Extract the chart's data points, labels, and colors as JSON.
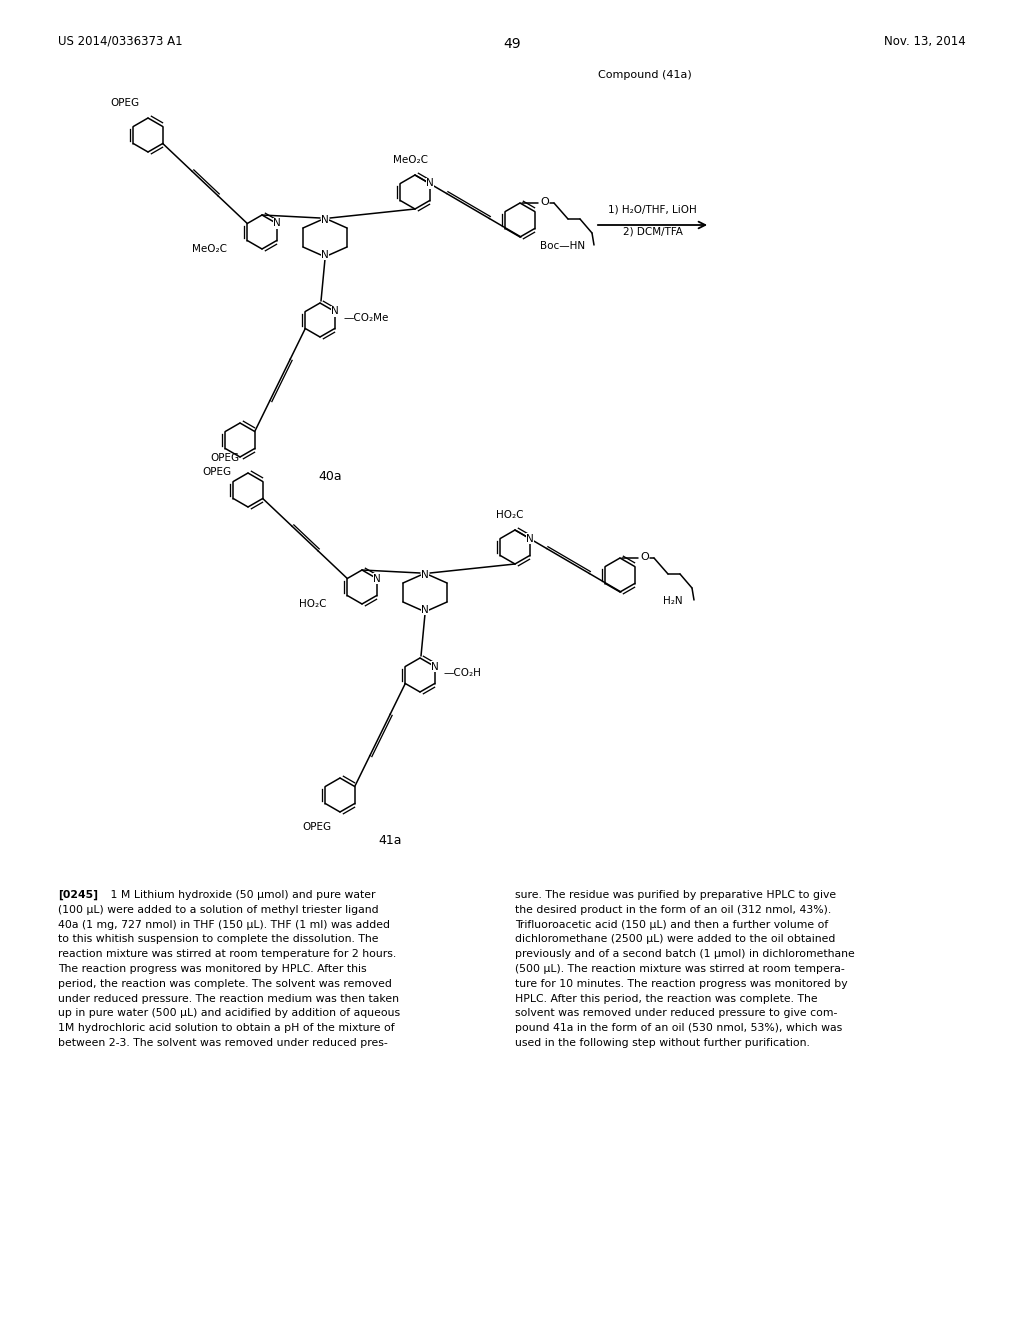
{
  "page_header_left": "US 2014/0336373 A1",
  "page_header_right": "Nov. 13, 2014",
  "page_number": "49",
  "compound_label_top": "Compound (41a)",
  "compound_label_40a": "40a",
  "compound_label_41a": "41a",
  "reaction_cond1": "1) H₂O/THF, LiOH",
  "reaction_cond2": "2) DCM/TFA",
  "para_num": "[0245]",
  "para_left_lines": [
    "[0245]   1 M Lithium hydroxide (50 μmol) and pure water",
    "(100 μL) were added to a solution of methyl triester ligand",
    "40a (1 mg, 727 nmol) in THF (150 μL). THF (1 ml) was added",
    "to this whitish suspension to complete the dissolution. The",
    "reaction mixture was stirred at room temperature for 2 hours.",
    "The reaction progress was monitored by HPLC. After this",
    "period, the reaction was complete. The solvent was removed",
    "under reduced pressure. The reaction medium was then taken",
    "up in pure water (500 μL) and acidified by addition of aqueous",
    "1M hydrochloric acid solution to obtain a pH of the mixture of",
    "between 2-3. The solvent was removed under reduced pres-"
  ],
  "para_right_lines": [
    "sure. The residue was purified by preparative HPLC to give",
    "the desired product in the form of an oil (312 nmol, 43%).",
    "Trifluoroacetic acid (150 μL) and then a further volume of",
    "dichloromethane (2500 μL) were added to the oil obtained",
    "previously and of a second batch (1 μmol) in dichloromethane",
    "(500 μL). The reaction mixture was stirred at room tempera-",
    "ture for 10 minutes. The reaction progress was monitored by",
    "HPLC. After this period, the reaction was complete. The",
    "solvent was removed under reduced pressure to give com-",
    "pound 41a in the form of an oil (530 nmol, 53%), which was",
    "used in the following step without further purification."
  ],
  "bg": "#ffffff"
}
